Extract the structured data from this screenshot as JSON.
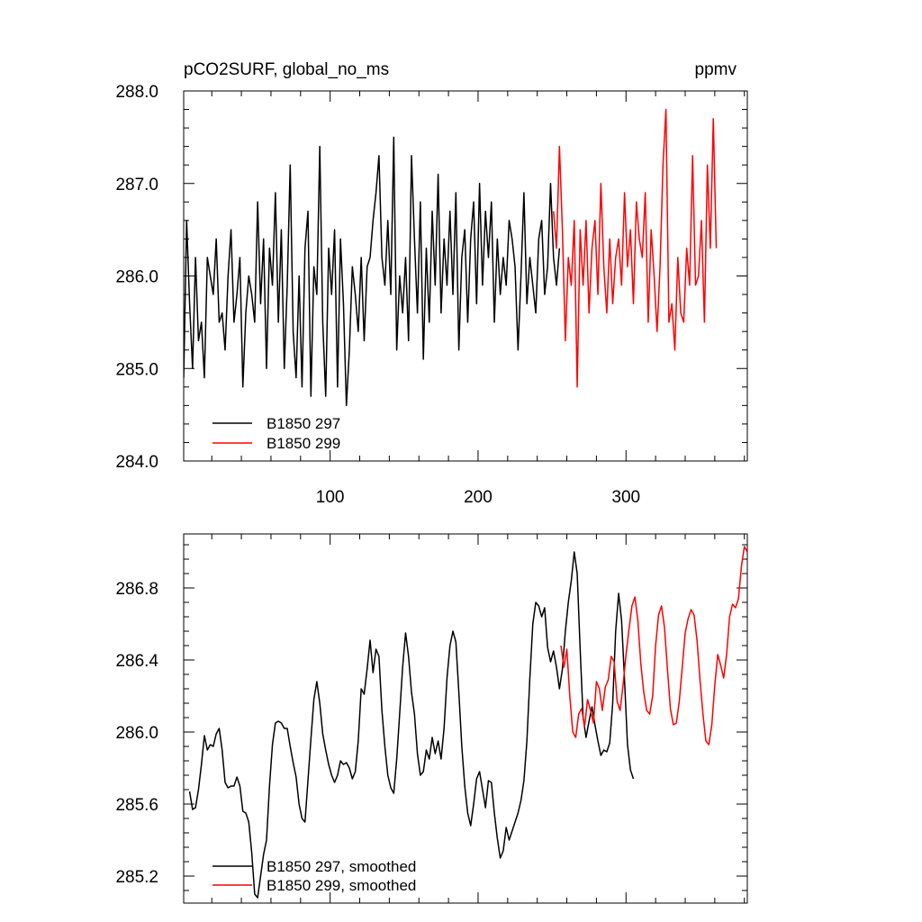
{
  "chart_data": [
    {
      "type": "line",
      "title": "pCO2SURF, global_no_ms",
      "units": "ppmv",
      "xlim": [
        1,
        382
      ],
      "ylim": [
        284.0,
        288.0
      ],
      "x_ticks": [
        100,
        200,
        300
      ],
      "x_tick_labels": [
        "100",
        "200",
        "300"
      ],
      "y_ticks": [
        284.0,
        285.0,
        286.0,
        287.0,
        288.0
      ],
      "y_tick_labels": [
        "284.0",
        "285.0",
        "286.0",
        "287.0",
        "288.0"
      ],
      "legend_position": "bottom-left",
      "series": [
        {
          "name": "B1850 297",
          "color": "#000000",
          "x_start": 1,
          "x_step": 10,
          "values": [
            284.9,
            286.6,
            285.7,
            285.0,
            286.2,
            285.3,
            285.5,
            284.9,
            286.2,
            286.0,
            285.8,
            286.4,
            285.5,
            285.6,
            285.2,
            286.0,
            286.5,
            285.5,
            285.8,
            286.2,
            284.8,
            285.6,
            286.0,
            285.8,
            285.5,
            286.8,
            285.7,
            286.4,
            285.0,
            286.3,
            285.9,
            286.9,
            285.5,
            286.5,
            285.0,
            285.9,
            287.2,
            285.4,
            284.9,
            286.0,
            284.8,
            286.3,
            286.7,
            284.7,
            286.1,
            285.8,
            287.4,
            285.5,
            284.7,
            286.3,
            285.8,
            286.5,
            284.8,
            286.4,
            285.7,
            284.6,
            285.2,
            286.1,
            285.8,
            285.4,
            286.2,
            285.3,
            286.1,
            286.2,
            286.6,
            286.9,
            287.3,
            286.2,
            285.9,
            286.6,
            285.8,
            287.5,
            285.2,
            286.0,
            285.6,
            286.2,
            285.3,
            287.3,
            286.4,
            285.6,
            286.8,
            285.1,
            286.3,
            285.5,
            286.7,
            285.9,
            287.1,
            285.6,
            286.4,
            285.9,
            286.7,
            285.8,
            286.9,
            285.2,
            286.2,
            286.5,
            285.5,
            286.4,
            286.8,
            285.7,
            287.0,
            285.9,
            286.7,
            286.2,
            286.8,
            285.5,
            286.4,
            285.8,
            286.2,
            285.9,
            286.6,
            286.4,
            286.1,
            285.2,
            286.0,
            286.9,
            285.7,
            286.2,
            285.9,
            285.6,
            286.4,
            286.6,
            285.8,
            286.1,
            287.0,
            286.2,
            285.9,
            286.3
          ]
        },
        {
          "name": "B1850 299",
          "color": "#ff0000",
          "x_start": 251,
          "x_step": 10,
          "values": [
            286.7,
            286.3,
            287.4,
            286.5,
            285.3,
            286.2,
            285.9,
            286.6,
            284.8,
            286.5,
            285.9,
            286.6,
            285.6,
            286.3,
            286.6,
            285.8,
            287.0,
            286.1,
            285.6,
            286.4,
            285.7,
            286.2,
            286.4,
            285.9,
            286.9,
            286.1,
            286.5,
            285.7,
            286.8,
            286.4,
            286.2,
            286.9,
            285.5,
            286.5,
            286.0,
            285.4,
            286.1,
            287.2,
            287.8,
            285.5,
            285.7,
            285.2,
            286.2,
            285.6,
            285.5,
            286.3,
            285.9,
            287.3,
            285.9,
            286.0,
            286.6,
            285.5,
            287.2,
            286.3,
            287.7,
            286.3
          ]
        }
      ]
    },
    {
      "type": "line",
      "title": "",
      "xlim": [
        1,
        382
      ],
      "ylim": [
        285.05,
        287.1
      ],
      "x_ticks": [
        100,
        200,
        300
      ],
      "y_ticks": [
        285.2,
        285.6,
        286.0,
        286.4,
        286.8
      ],
      "y_tick_labels": [
        "285.2",
        "285.6",
        "286.0",
        "286.4",
        "286.8"
      ],
      "legend_position": "bottom-left",
      "series": [
        {
          "name": "B1850 297, smoothed",
          "color": "#000000",
          "points": [
            [
              5,
              285.67
            ],
            [
              7,
              285.57
            ],
            [
              9,
              285.58
            ],
            [
              11,
              285.68
            ],
            [
              13,
              285.82
            ],
            [
              15,
              285.98
            ],
            [
              17,
              285.9
            ],
            [
              19,
              285.93
            ],
            [
              21,
              285.92
            ],
            [
              23,
              285.99
            ],
            [
              25,
              286.02
            ],
            [
              27,
              285.9
            ],
            [
              29,
              285.72
            ],
            [
              31,
              285.69
            ],
            [
              33,
              285.7
            ],
            [
              35,
              285.7
            ],
            [
              37,
              285.75
            ],
            [
              39,
              285.7
            ],
            [
              41,
              285.56
            ],
            [
              43,
              285.55
            ],
            [
              45,
              285.5
            ],
            [
              47,
              285.33
            ],
            [
              49,
              285.1
            ],
            [
              51,
              285.08
            ],
            [
              53,
              285.2
            ],
            [
              55,
              285.32
            ],
            [
              57,
              285.4
            ],
            [
              59,
              285.7
            ],
            [
              61,
              285.93
            ],
            [
              63,
              286.05
            ],
            [
              65,
              286.06
            ],
            [
              67,
              286.05
            ],
            [
              69,
              286.02
            ],
            [
              71,
              286.02
            ],
            [
              73,
              285.92
            ],
            [
              75,
              285.83
            ],
            [
              77,
              285.75
            ],
            [
              79,
              285.6
            ],
            [
              81,
              285.52
            ],
            [
              83,
              285.5
            ],
            [
              85,
              285.73
            ],
            [
              87,
              285.96
            ],
            [
              89,
              286.18
            ],
            [
              91,
              286.28
            ],
            [
              93,
              286.16
            ],
            [
              95,
              285.99
            ],
            [
              97,
              285.9
            ],
            [
              99,
              285.82
            ],
            [
              101,
              285.76
            ],
            [
              103,
              285.72
            ],
            [
              105,
              285.76
            ],
            [
              107,
              285.84
            ],
            [
              109,
              285.82
            ],
            [
              111,
              285.83
            ],
            [
              113,
              285.8
            ],
            [
              115,
              285.74
            ],
            [
              117,
              285.78
            ],
            [
              119,
              285.95
            ],
            [
              121,
              286.24
            ],
            [
              123,
              286.21
            ],
            [
              125,
              286.35
            ],
            [
              127,
              286.51
            ],
            [
              129,
              286.33
            ],
            [
              131,
              286.46
            ],
            [
              133,
              286.42
            ],
            [
              135,
              286.12
            ],
            [
              137,
              285.92
            ],
            [
              139,
              285.76
            ],
            [
              141,
              285.69
            ],
            [
              143,
              285.66
            ],
            [
              145,
              285.85
            ],
            [
              147,
              286.1
            ],
            [
              149,
              286.36
            ],
            [
              151,
              286.55
            ],
            [
              153,
              286.42
            ],
            [
              155,
              286.22
            ],
            [
              157,
              286.1
            ],
            [
              159,
              285.88
            ],
            [
              161,
              285.76
            ],
            [
              163,
              285.78
            ],
            [
              165,
              285.9
            ],
            [
              167,
              285.85
            ],
            [
              169,
              285.97
            ],
            [
              171,
              285.88
            ],
            [
              173,
              285.95
            ],
            [
              175,
              285.85
            ],
            [
              177,
              286.02
            ],
            [
              179,
              286.3
            ],
            [
              181,
              286.48
            ],
            [
              183,
              286.56
            ],
            [
              185,
              286.5
            ],
            [
              187,
              286.22
            ],
            [
              189,
              285.92
            ],
            [
              191,
              285.7
            ],
            [
              193,
              285.55
            ],
            [
              195,
              285.48
            ],
            [
              197,
              285.6
            ],
            [
              199,
              285.74
            ],
            [
              201,
              285.78
            ],
            [
              203,
              285.68
            ],
            [
              205,
              285.58
            ],
            [
              207,
              285.73
            ],
            [
              209,
              285.72
            ],
            [
              211,
              285.55
            ],
            [
              213,
              285.41
            ],
            [
              215,
              285.3
            ],
            [
              217,
              285.34
            ],
            [
              219,
              285.47
            ],
            [
              221,
              285.4
            ],
            [
              223,
              285.45
            ],
            [
              225,
              285.5
            ],
            [
              227,
              285.55
            ],
            [
              229,
              285.62
            ],
            [
              231,
              285.73
            ],
            [
              233,
              285.95
            ],
            [
              235,
              286.3
            ],
            [
              237,
              286.6
            ],
            [
              239,
              286.72
            ],
            [
              241,
              286.7
            ],
            [
              243,
              286.64
            ],
            [
              245,
              286.69
            ],
            [
              247,
              286.47
            ],
            [
              249,
              286.39
            ],
            [
              251,
              286.45
            ],
            [
              253,
              286.36
            ],
            [
              255,
              286.24
            ],
            [
              257,
              286.35
            ],
            [
              259,
              286.56
            ],
            [
              261,
              286.72
            ],
            [
              263,
              286.84
            ],
            [
              265,
              287.0
            ],
            [
              267,
              286.88
            ],
            [
              269,
              286.46
            ],
            [
              271,
              286.08
            ],
            [
              273,
              285.97
            ],
            [
              275,
              286.06
            ],
            [
              277,
              286.14
            ],
            [
              279,
              286.04
            ],
            [
              281,
              285.95
            ],
            [
              283,
              285.87
            ],
            [
              285,
              285.9
            ],
            [
              287,
              285.89
            ],
            [
              289,
              285.94
            ],
            [
              291,
              286.16
            ],
            [
              293,
              286.56
            ],
            [
              295,
              286.77
            ],
            [
              297,
              286.62
            ],
            [
              299,
              286.29
            ],
            [
              301,
              285.93
            ],
            [
              303,
              285.79
            ],
            [
              305,
              285.74
            ]
          ]
        },
        {
          "name": "B1850 299, smoothed",
          "color": "#ff0000",
          "points": [
            [
              256,
              286.48
            ],
            [
              258,
              286.36
            ],
            [
              260,
              286.46
            ],
            [
              262,
              286.2
            ],
            [
              264,
              286.0
            ],
            [
              266,
              285.97
            ],
            [
              268,
              286.1
            ],
            [
              270,
              286.13
            ],
            [
              272,
              286.03
            ],
            [
              274,
              286.18
            ],
            [
              276,
              286.12
            ],
            [
              278,
              286.05
            ],
            [
              280,
              286.28
            ],
            [
              282,
              286.24
            ],
            [
              284,
              286.12
            ],
            [
              286,
              286.25
            ],
            [
              288,
              286.29
            ],
            [
              290,
              286.42
            ],
            [
              292,
              286.39
            ],
            [
              294,
              286.17
            ],
            [
              296,
              286.12
            ],
            [
              298,
              286.26
            ],
            [
              300,
              286.43
            ],
            [
              302,
              286.57
            ],
            [
              304,
              286.7
            ],
            [
              306,
              286.75
            ],
            [
              308,
              286.62
            ],
            [
              310,
              286.38
            ],
            [
              312,
              286.22
            ],
            [
              314,
              286.12
            ],
            [
              316,
              286.1
            ],
            [
              318,
              286.2
            ],
            [
              320,
              286.48
            ],
            [
              322,
              286.65
            ],
            [
              324,
              286.7
            ],
            [
              326,
              286.58
            ],
            [
              328,
              286.35
            ],
            [
              330,
              286.13
            ],
            [
              332,
              286.04
            ],
            [
              334,
              286.05
            ],
            [
              336,
              286.17
            ],
            [
              338,
              286.36
            ],
            [
              340,
              286.55
            ],
            [
              342,
              286.63
            ],
            [
              344,
              286.68
            ],
            [
              346,
              286.65
            ],
            [
              348,
              286.51
            ],
            [
              350,
              286.29
            ],
            [
              352,
              286.1
            ],
            [
              354,
              285.95
            ],
            [
              356,
              285.93
            ],
            [
              358,
              286.04
            ],
            [
              360,
              286.26
            ],
            [
              362,
              286.43
            ],
            [
              364,
              286.37
            ],
            [
              366,
              286.3
            ],
            [
              368,
              286.43
            ],
            [
              370,
              286.64
            ],
            [
              372,
              286.71
            ],
            [
              374,
              286.69
            ],
            [
              376,
              286.74
            ],
            [
              378,
              286.92
            ],
            [
              380,
              287.03
            ],
            [
              382,
              287.0
            ]
          ]
        }
      ]
    }
  ]
}
